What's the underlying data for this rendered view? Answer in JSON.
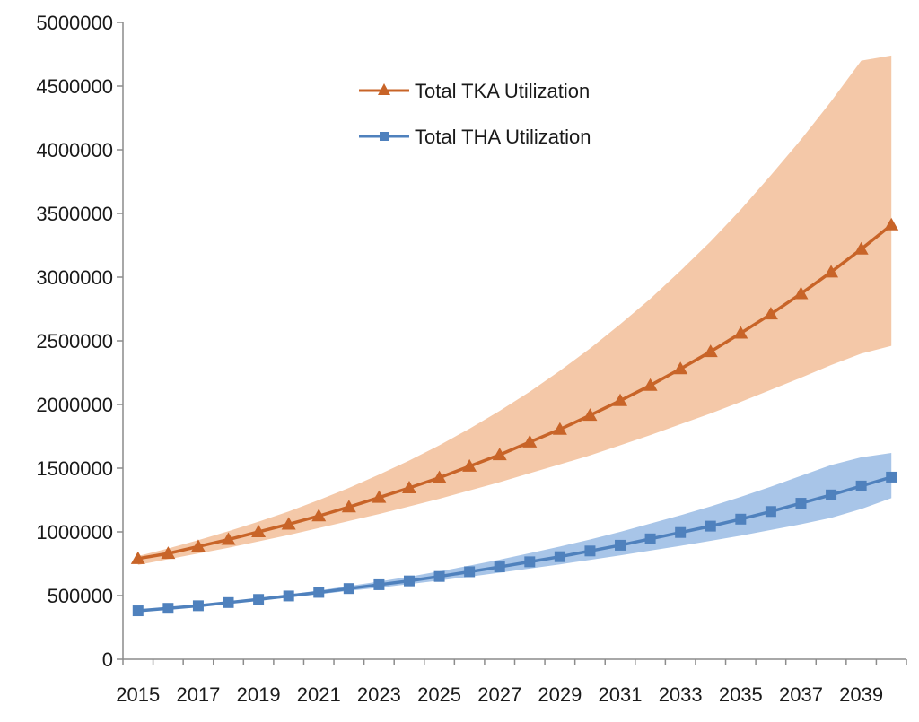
{
  "chart_data": {
    "type": "line",
    "title": "",
    "xlabel": "",
    "ylabel": "",
    "x": [
      2015,
      2016,
      2017,
      2018,
      2019,
      2020,
      2021,
      2022,
      2023,
      2024,
      2025,
      2026,
      2027,
      2028,
      2029,
      2030,
      2031,
      2032,
      2033,
      2034,
      2035,
      2036,
      2037,
      2038,
      2039,
      2040
    ],
    "x_tick_labels": [
      "2015",
      "2017",
      "2019",
      "2021",
      "2023",
      "2025",
      "2027",
      "2029",
      "2031",
      "2033",
      "2035",
      "2037",
      "2039"
    ],
    "y_tick_labels": [
      "0",
      "500000",
      "1000000",
      "1500000",
      "2000000",
      "2500000",
      "3000000",
      "3500000",
      "4000000",
      "4500000",
      "5000000"
    ],
    "ylim": [
      0,
      5000000
    ],
    "grid": false,
    "legend_position": "top-center",
    "series": [
      {
        "name": "Total TKA Utilization",
        "color": "#c86428",
        "band_color": "#f4c8a8",
        "marker": "triangle",
        "values": [
          790000,
          830000,
          885000,
          940000,
          1000000,
          1060000,
          1125000,
          1195000,
          1270000,
          1345000,
          1425000,
          1515000,
          1605000,
          1705000,
          1805000,
          1915000,
          2030000,
          2150000,
          2280000,
          2415000,
          2560000,
          2710000,
          2870000,
          3040000,
          3220000,
          3410000
        ],
        "band_upper": [
          810000,
          870000,
          935000,
          1005000,
          1080000,
          1160000,
          1250000,
          1345000,
          1450000,
          1560000,
          1680000,
          1810000,
          1950000,
          2100000,
          2265000,
          2440000,
          2630000,
          2830000,
          3050000,
          3280000,
          3530000,
          3800000,
          4080000,
          4380000,
          4700000,
          4740000
        ],
        "band_lower": [
          740000,
          785000,
          830000,
          875000,
          925000,
          975000,
          1030000,
          1085000,
          1140000,
          1200000,
          1260000,
          1325000,
          1390000,
          1460000,
          1530000,
          1600000,
          1680000,
          1760000,
          1845000,
          1930000,
          2020000,
          2115000,
          2210000,
          2310000,
          2400000,
          2460000
        ]
      },
      {
        "name": "Total THA Utilization",
        "color": "#4f81bd",
        "band_color": "#a8c5e8",
        "marker": "square",
        "values": [
          380000,
          400000,
          420000,
          445000,
          470000,
          497000,
          525000,
          555000,
          585000,
          615000,
          650000,
          687000,
          725000,
          765000,
          805000,
          850000,
          895000,
          945000,
          995000,
          1045000,
          1100000,
          1160000,
          1225000,
          1290000,
          1360000,
          1430000
        ],
        "band_upper": [
          385000,
          405000,
          428000,
          453000,
          480000,
          510000,
          540000,
          575000,
          610000,
          648000,
          690000,
          735000,
          782000,
          833000,
          885000,
          940000,
          1000000,
          1065000,
          1130000,
          1200000,
          1275000,
          1355000,
          1440000,
          1525000,
          1585000,
          1620000
        ],
        "band_lower": [
          375000,
          395000,
          414000,
          437000,
          460000,
          485000,
          510000,
          537000,
          562000,
          590000,
          618000,
          648000,
          680000,
          712000,
          745000,
          780000,
          815000,
          853000,
          890000,
          930000,
          970000,
          1015000,
          1060000,
          1110000,
          1180000,
          1265000
        ]
      }
    ]
  }
}
